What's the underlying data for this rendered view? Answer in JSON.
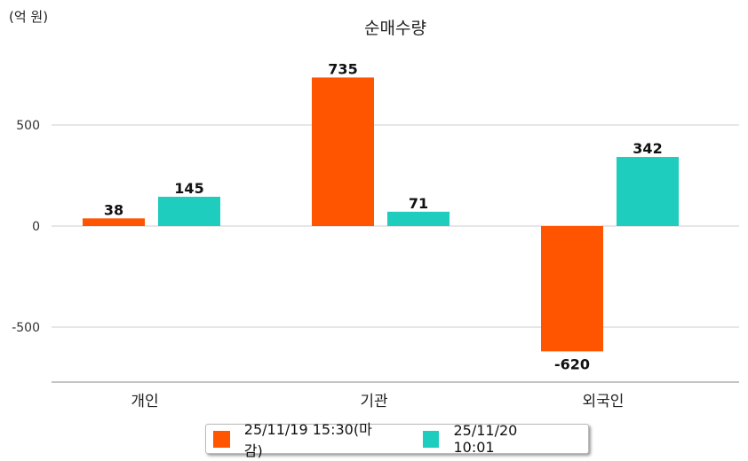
{
  "chart_data": {
    "type": "bar",
    "title": "순매수량",
    "unit_label": "(억 원)",
    "categories": [
      "개인",
      "기관",
      "외국인"
    ],
    "series": [
      {
        "name": "25/11/19 15:30(마감)",
        "color": "#FF5500",
        "values": [
          38,
          735,
          -620
        ]
      },
      {
        "name": "25/11/20 10:01",
        "color": "#1ECDBE",
        "values": [
          145,
          71,
          342
        ]
      }
    ],
    "yticks": [
      500,
      0,
      -500
    ],
    "ylim": [
      -772,
      860
    ],
    "grid": true,
    "legend_position": "bottom"
  }
}
